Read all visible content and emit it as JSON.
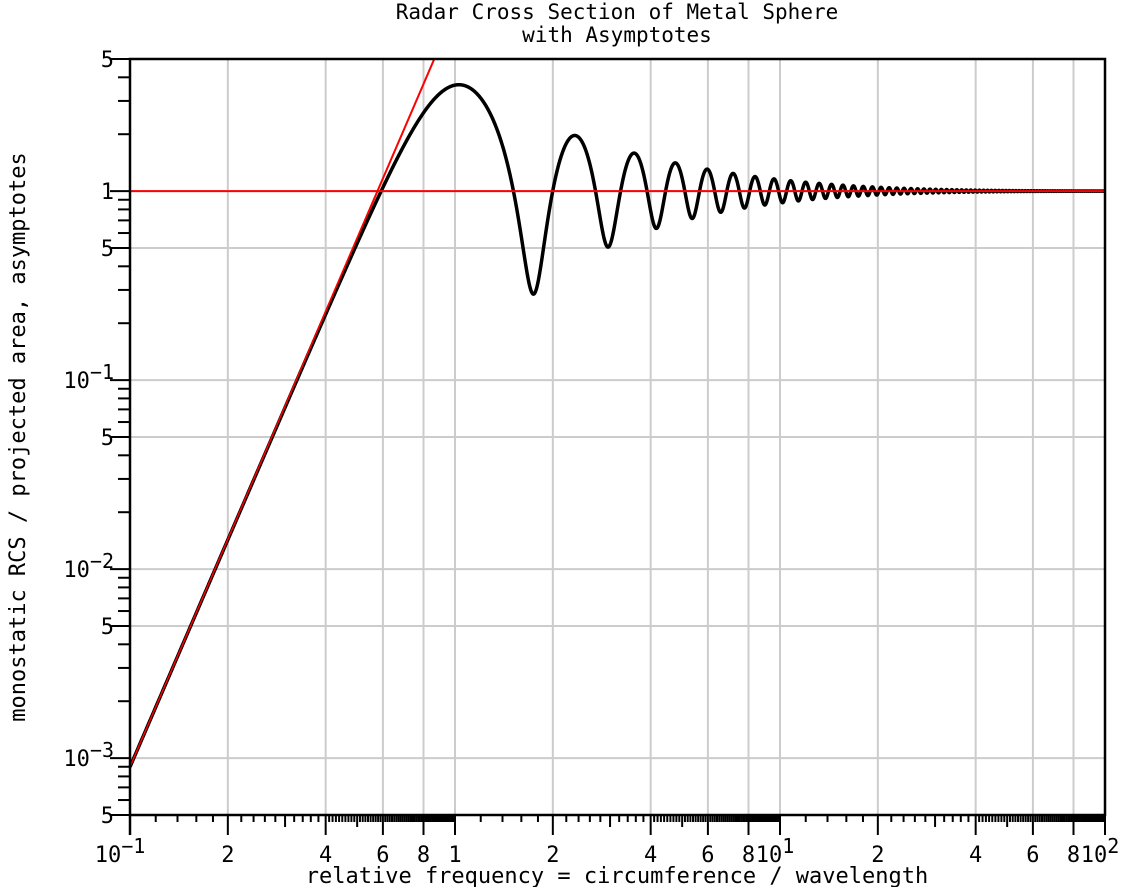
{
  "chart_data": {
    "type": "line",
    "title": [
      "Radar Cross Section of Metal Sphere",
      "with Asymptotes"
    ],
    "xlabel": "relative frequency = circumference / wavelength",
    "ylabel": "monostatic RCS / projected area, asymptotes",
    "xscale": "log",
    "yscale": "log",
    "xlim": [
      0.1,
      100
    ],
    "ylim": [
      0.0005,
      5
    ],
    "grid": true,
    "x_tick_labels": [
      {
        "value": 0.1,
        "base": "10",
        "exp": "-1"
      },
      {
        "value": 0.2,
        "base": "2"
      },
      {
        "value": 0.4,
        "base": "4"
      },
      {
        "value": 0.6,
        "base": "6"
      },
      {
        "value": 0.8,
        "base": "8"
      },
      {
        "value": 1,
        "base": "1"
      },
      {
        "value": 2,
        "base": "2"
      },
      {
        "value": 4,
        "base": "4"
      },
      {
        "value": 6,
        "base": "6"
      },
      {
        "value": 8,
        "base": "8"
      },
      {
        "value": 10,
        "base": "10",
        "exp": "1"
      },
      {
        "value": 20,
        "base": "2"
      },
      {
        "value": 40,
        "base": "4"
      },
      {
        "value": 60,
        "base": "6"
      },
      {
        "value": 80,
        "base": "8"
      },
      {
        "value": 100,
        "base": "10",
        "exp": "2"
      }
    ],
    "y_tick_labels": [
      {
        "value": 5,
        "base": "5"
      },
      {
        "value": 1,
        "base": "1"
      },
      {
        "value": 0.5,
        "base": "5"
      },
      {
        "value": 0.1,
        "base": "10",
        "exp": "-1"
      },
      {
        "value": 0.05,
        "base": "5"
      },
      {
        "value": 0.01,
        "base": "10",
        "exp": "-2"
      },
      {
        "value": 0.005,
        "base": "5"
      },
      {
        "value": 0.001,
        "base": "10",
        "exp": "-3"
      },
      {
        "value": 0.0005,
        "base": "5"
      }
    ],
    "series": [
      {
        "role": "sphere RCS (Mie series)",
        "color": "#000000",
        "model": "mie-pec-sphere-monostatic",
        "extrema": {
          "x": [
            1.0,
            1.75,
            2.35,
            3.1,
            3.55,
            4.2,
            4.7,
            5.4,
            5.95,
            6.6,
            7.2,
            7.9,
            8.5
          ],
          "y": [
            3.65,
            0.27,
            1.9,
            0.5,
            1.6,
            0.62,
            1.45,
            0.72,
            1.35,
            0.78,
            1.3,
            0.82,
            1.25
          ]
        },
        "start": {
          "x": 0.1,
          "y": 0.0009
        },
        "end": {
          "x": 100,
          "y": 1.0
        }
      },
      {
        "role": "Rayleigh asymptote",
        "color": "#ff0000",
        "coefficient": 9,
        "exponent": 4
      },
      {
        "role": "optical asymptote",
        "color": "#ff0000",
        "value": 1
      }
    ]
  }
}
